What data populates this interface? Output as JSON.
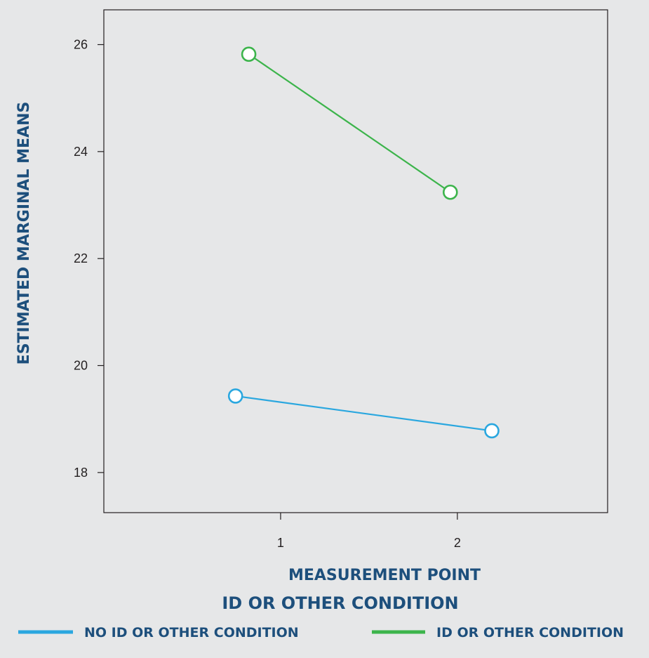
{
  "chart_data": {
    "type": "line",
    "xlabel": "MEASUREMENT POINT",
    "ylabel": "ESTIMATED MARGINAL MEANS",
    "xlim": [
      0.0,
      2.85
    ],
    "ylim": [
      17.25,
      26.65
    ],
    "x_ticks": [
      1,
      2
    ],
    "x_tick_labels": [
      "1",
      "2"
    ],
    "y_ticks": [
      18,
      20,
      22,
      24,
      26
    ],
    "y_tick_labels": [
      "18",
      "20",
      "22",
      "24",
      "26"
    ],
    "grid": false,
    "legend": {
      "title": "ID OR OTHER CONDITION",
      "placement": "bottom"
    },
    "series": [
      {
        "name": "NO ID OR OTHER CONDITION",
        "color": "#2aa7df",
        "points": [
          {
            "x": 1,
            "y": 19.43
          },
          {
            "x": 2,
            "y": 18.78
          }
        ]
      },
      {
        "name": "ID OR OTHER CONDITION",
        "color": "#3cb44b",
        "points": [
          {
            "x": 1,
            "y": 25.82
          },
          {
            "x": 2,
            "y": 23.24
          }
        ]
      }
    ]
  }
}
